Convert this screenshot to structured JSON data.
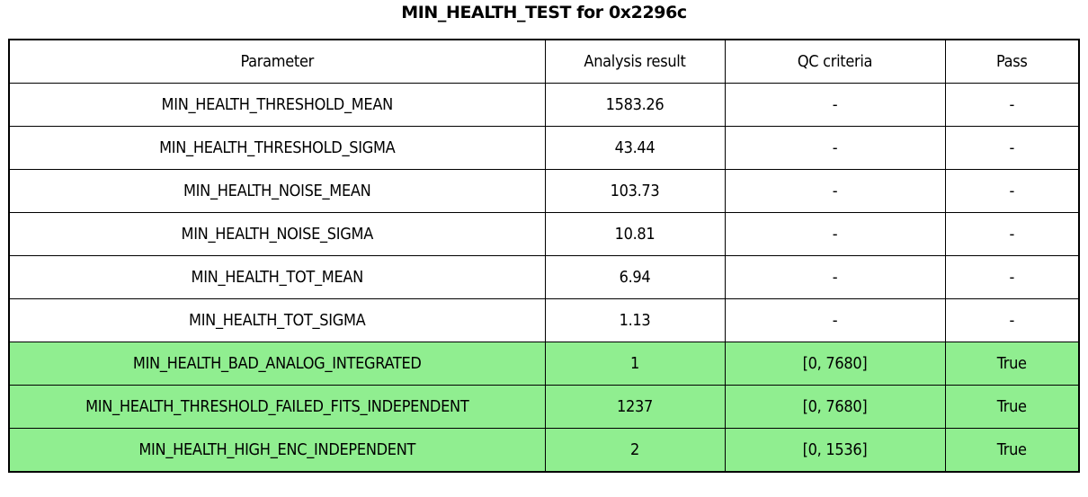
{
  "chart_data": {
    "type": "table",
    "title": "MIN_HEALTH_TEST for 0x2296c",
    "columns": [
      "Parameter",
      "Analysis result",
      "QC criteria",
      "Pass"
    ],
    "rows": [
      [
        "MIN_HEALTH_THRESHOLD_MEAN",
        "1583.26",
        "-",
        "-"
      ],
      [
        "MIN_HEALTH_THRESHOLD_SIGMA",
        "43.44",
        "-",
        "-"
      ],
      [
        "MIN_HEALTH_NOISE_MEAN",
        "103.73",
        "-",
        "-"
      ],
      [
        "MIN_HEALTH_NOISE_SIGMA",
        "10.81",
        "-",
        "-"
      ],
      [
        "MIN_HEALTH_TOT_MEAN",
        "6.94",
        "-",
        "-"
      ],
      [
        "MIN_HEALTH_TOT_SIGMA",
        "1.13",
        "-",
        "-"
      ],
      [
        "MIN_HEALTH_BAD_ANALOG_INTEGRATED",
        "1",
        "[0, 7680]",
        "True"
      ],
      [
        "MIN_HEALTH_THRESHOLD_FAILED_FITS_INDEPENDENT",
        "1237",
        "[0, 7680]",
        "True"
      ],
      [
        "MIN_HEALTH_HIGH_ENC_INDEPENDENT",
        "2",
        "[0, 1536]",
        "True"
      ]
    ],
    "row_highlight": [
      false,
      false,
      false,
      false,
      false,
      false,
      true,
      true,
      true
    ],
    "colors": {
      "highlight_green": "#90EE90",
      "border": "#000000",
      "background": "#FFFFFF",
      "text": "#000000"
    },
    "layout_hints": {
      "header_row": true,
      "grid": true,
      "all_cells_centered": true
    }
  }
}
